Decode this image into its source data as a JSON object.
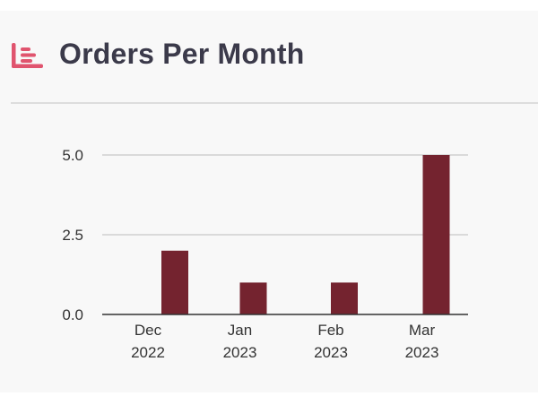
{
  "header": {
    "title": "Orders Per Month",
    "icon": "bar-chart-icon",
    "accent_color": "#e0546e"
  },
  "chart_data": {
    "type": "bar",
    "title": "Orders Per Month",
    "xlabel": "",
    "ylabel": "",
    "categories": [
      [
        "Dec",
        "2022"
      ],
      [
        "Jan",
        "2023"
      ],
      [
        "Feb",
        "2023"
      ],
      [
        "Mar",
        "2023"
      ]
    ],
    "values": [
      2,
      1,
      1,
      5
    ],
    "ylim": [
      0,
      5
    ],
    "yticks": [
      "0.0",
      "2.5",
      "5.0"
    ],
    "ytick_values": [
      0,
      2.5,
      5
    ],
    "grid": true,
    "bar_color": "#74232f",
    "grid_color": "#c8c8c8",
    "axis_color": "#333333"
  }
}
